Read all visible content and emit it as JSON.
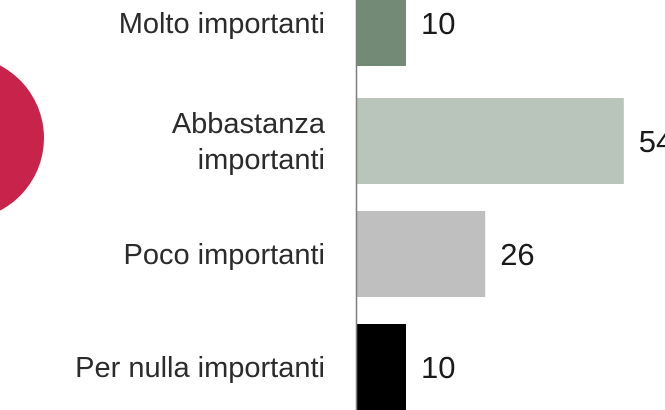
{
  "chart_data": {
    "type": "bar",
    "orientation": "horizontal",
    "categories": [
      [
        "Molto importanti"
      ],
      [
        "Abbastanza",
        "importanti"
      ],
      [
        "Poco importanti"
      ],
      [
        "Per nulla importanti"
      ]
    ],
    "values": [
      10,
      54,
      26,
      10
    ],
    "bar_colors": [
      "#738a76",
      "#b9c4bb",
      "#bfbfbf",
      "#000000"
    ],
    "decor_color": "#c8234a",
    "xlim": [
      0,
      60
    ],
    "grid": false,
    "legend": "none"
  }
}
